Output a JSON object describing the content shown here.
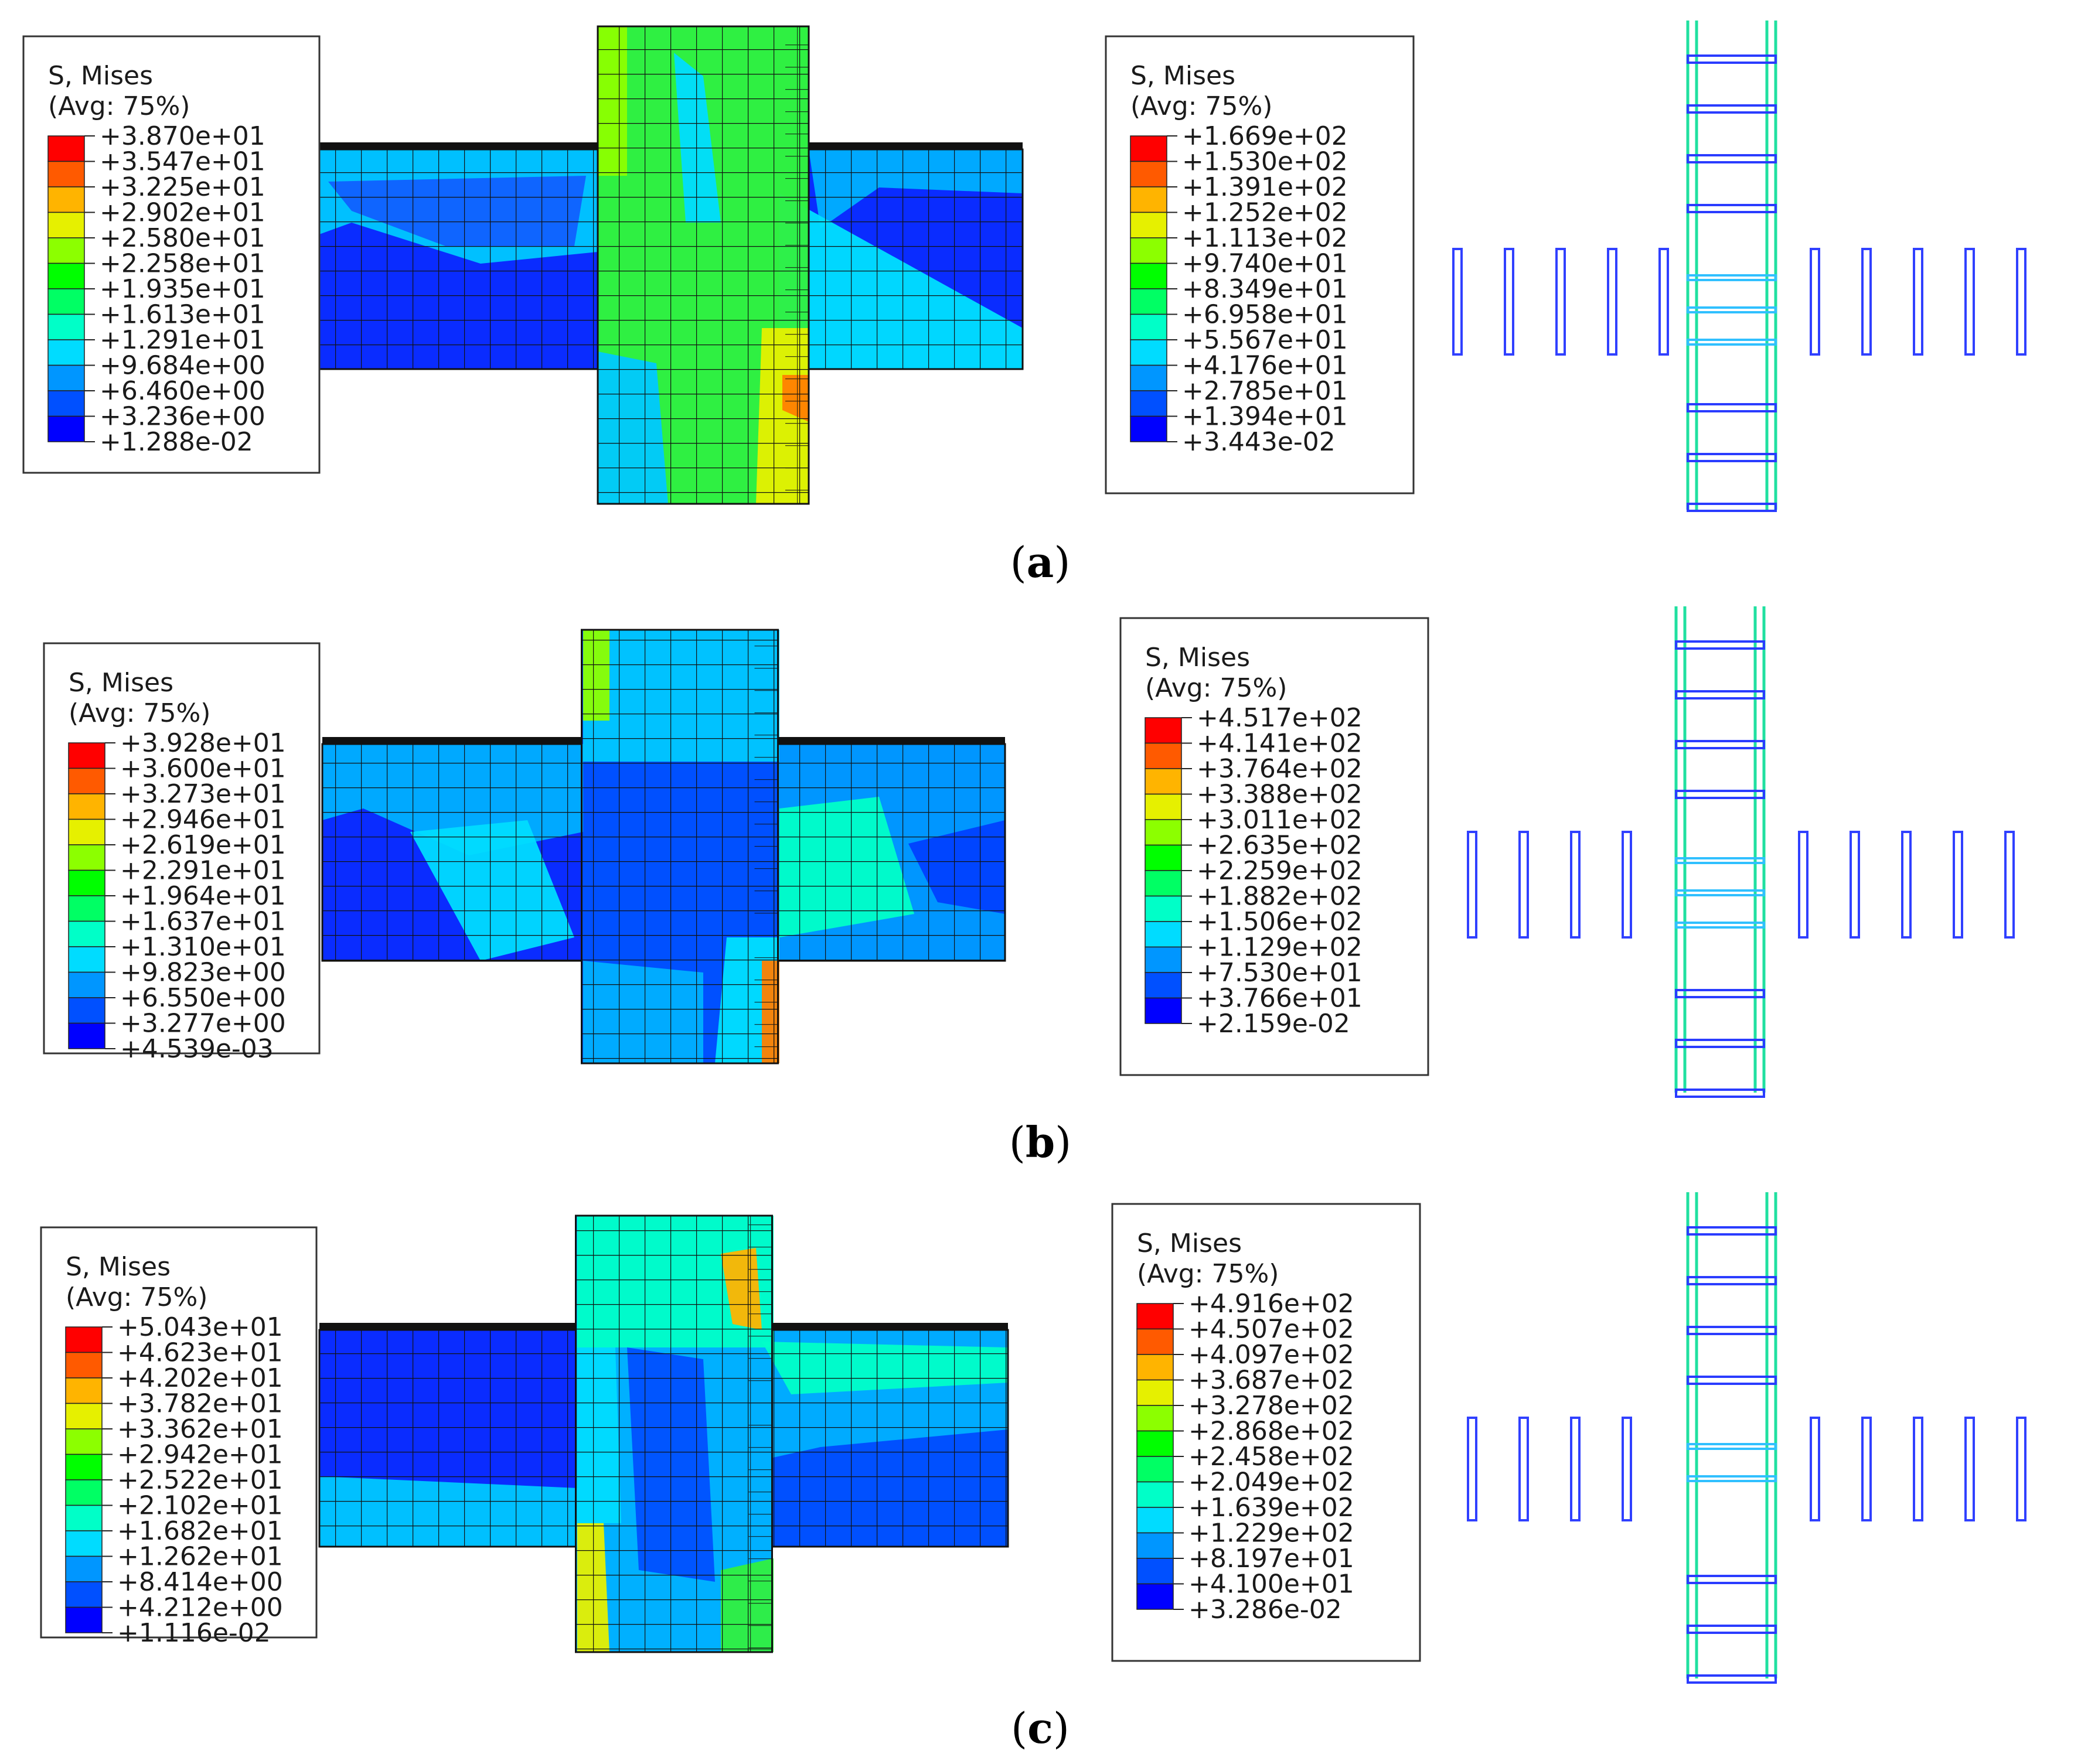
{
  "panels": [
    {
      "caption": "a",
      "concrete_legend": {
        "title": "S, Mises",
        "subtitle": "(Avg: 75%)",
        "values": [
          "+3.870e+01",
          "+3.547e+01",
          "+3.225e+01",
          "+2.902e+01",
          "+2.580e+01",
          "+2.258e+01",
          "+1.935e+01",
          "+1.613e+01",
          "+1.291e+01",
          "+9.684e+00",
          "+6.460e+00",
          "+3.236e+00",
          "+1.288e-02"
        ]
      },
      "rebar_legend": {
        "title": "S, Mises",
        "subtitle": "(Avg: 75%)",
        "values": [
          "+1.669e+02",
          "+1.530e+02",
          "+1.391e+02",
          "+1.252e+02",
          "+1.113e+02",
          "+9.740e+01",
          "+8.349e+01",
          "+6.958e+01",
          "+5.567e+01",
          "+4.176e+01",
          "+2.785e+01",
          "+1.394e+01",
          "+3.443e-02"
        ]
      }
    },
    {
      "caption": "b",
      "concrete_legend": {
        "title": "S, Mises",
        "subtitle": "(Avg: 75%)",
        "values": [
          "+3.928e+01",
          "+3.600e+01",
          "+3.273e+01",
          "+2.946e+01",
          "+2.619e+01",
          "+2.291e+01",
          "+1.964e+01",
          "+1.637e+01",
          "+1.310e+01",
          "+9.823e+00",
          "+6.550e+00",
          "+3.277e+00",
          "+4.539e-03"
        ]
      },
      "rebar_legend": {
        "title": "S, Mises",
        "subtitle": "(Avg: 75%)",
        "values": [
          "+4.517e+02",
          "+4.141e+02",
          "+3.764e+02",
          "+3.388e+02",
          "+3.011e+02",
          "+2.635e+02",
          "+2.259e+02",
          "+1.882e+02",
          "+1.506e+02",
          "+1.129e+02",
          "+7.530e+01",
          "+3.766e+01",
          "+2.159e-02"
        ]
      }
    },
    {
      "caption": "c",
      "concrete_legend": {
        "title": "S, Mises",
        "subtitle": "(Avg: 75%)",
        "values": [
          "+5.043e+01",
          "+4.623e+01",
          "+4.202e+01",
          "+3.782e+01",
          "+3.362e+01",
          "+2.942e+01",
          "+2.522e+01",
          "+2.102e+01",
          "+1.682e+01",
          "+1.262e+01",
          "+8.414e+00",
          "+4.212e+00",
          "+1.116e-02"
        ]
      },
      "rebar_legend": {
        "title": "S, Mises",
        "subtitle": "(Avg: 75%)",
        "values": [
          "+4.916e+02",
          "+4.507e+02",
          "+4.097e+02",
          "+3.687e+02",
          "+3.278e+02",
          "+2.868e+02",
          "+2.458e+02",
          "+2.049e+02",
          "+1.639e+02",
          "+1.229e+02",
          "+8.197e+01",
          "+4.100e+01",
          "+3.286e-02"
        ]
      }
    }
  ],
  "colormap": [
    "#ff0000",
    "#ff5a00",
    "#ffb400",
    "#e6f000",
    "#8cff00",
    "#00ff00",
    "#00ff64",
    "#00ffc8",
    "#00dcff",
    "#0096ff",
    "#0050ff",
    "#0000ff"
  ]
}
